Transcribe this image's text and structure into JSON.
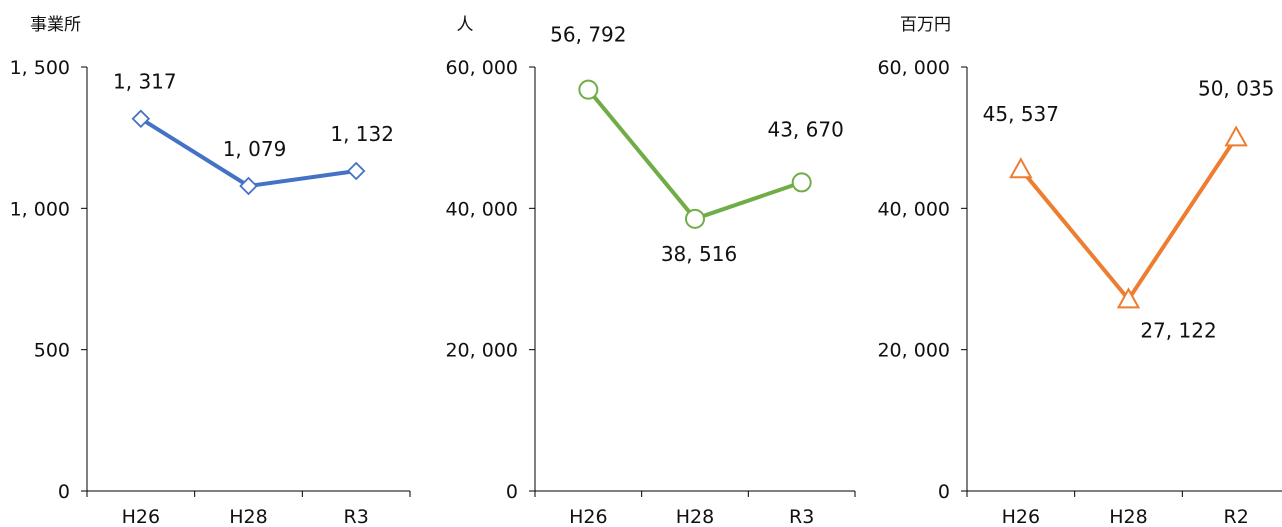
{
  "chart_data": [
    {
      "type": "line",
      "unit_label": "事業所",
      "categories": [
        "H26",
        "H28",
        "R3"
      ],
      "series": [
        {
          "values": [
            1317,
            1079,
            1132
          ],
          "labels": [
            "1, 317",
            "1, 079",
            "1, 132"
          ]
        }
      ],
      "ylim": [
        0,
        1500
      ],
      "yticks": [
        0,
        500,
        1000,
        1500
      ],
      "ytick_labels": [
        "0",
        "500",
        "1, 000",
        "1, 500"
      ],
      "marker": "diamond",
      "color": "#4472C4",
      "grid": false
    },
    {
      "type": "line",
      "unit_label": "人",
      "categories": [
        "H26",
        "H28",
        "R3"
      ],
      "series": [
        {
          "values": [
            56792,
            38516,
            43670
          ],
          "labels": [
            "56, 792",
            "38, 516",
            "43, 670"
          ]
        }
      ],
      "ylim": [
        0,
        60000
      ],
      "yticks": [
        0,
        20000,
        40000,
        60000
      ],
      "ytick_labels": [
        "0",
        "20, 000",
        "40, 000",
        "60, 000"
      ],
      "marker": "circle",
      "color": "#70AD47",
      "grid": false
    },
    {
      "type": "line",
      "unit_label": "百万円",
      "categories": [
        "H26",
        "H28",
        "R2"
      ],
      "series": [
        {
          "values": [
            45537,
            27122,
            50035
          ],
          "labels": [
            "45, 537",
            "27, 122",
            "50, 035"
          ]
        }
      ],
      "ylim": [
        0,
        60000
      ],
      "yticks": [
        0,
        20000,
        40000,
        60000
      ],
      "ytick_labels": [
        "0",
        "20, 000",
        "40, 000",
        "60, 000"
      ],
      "marker": "triangle",
      "color": "#ED7D31",
      "grid": false
    }
  ]
}
